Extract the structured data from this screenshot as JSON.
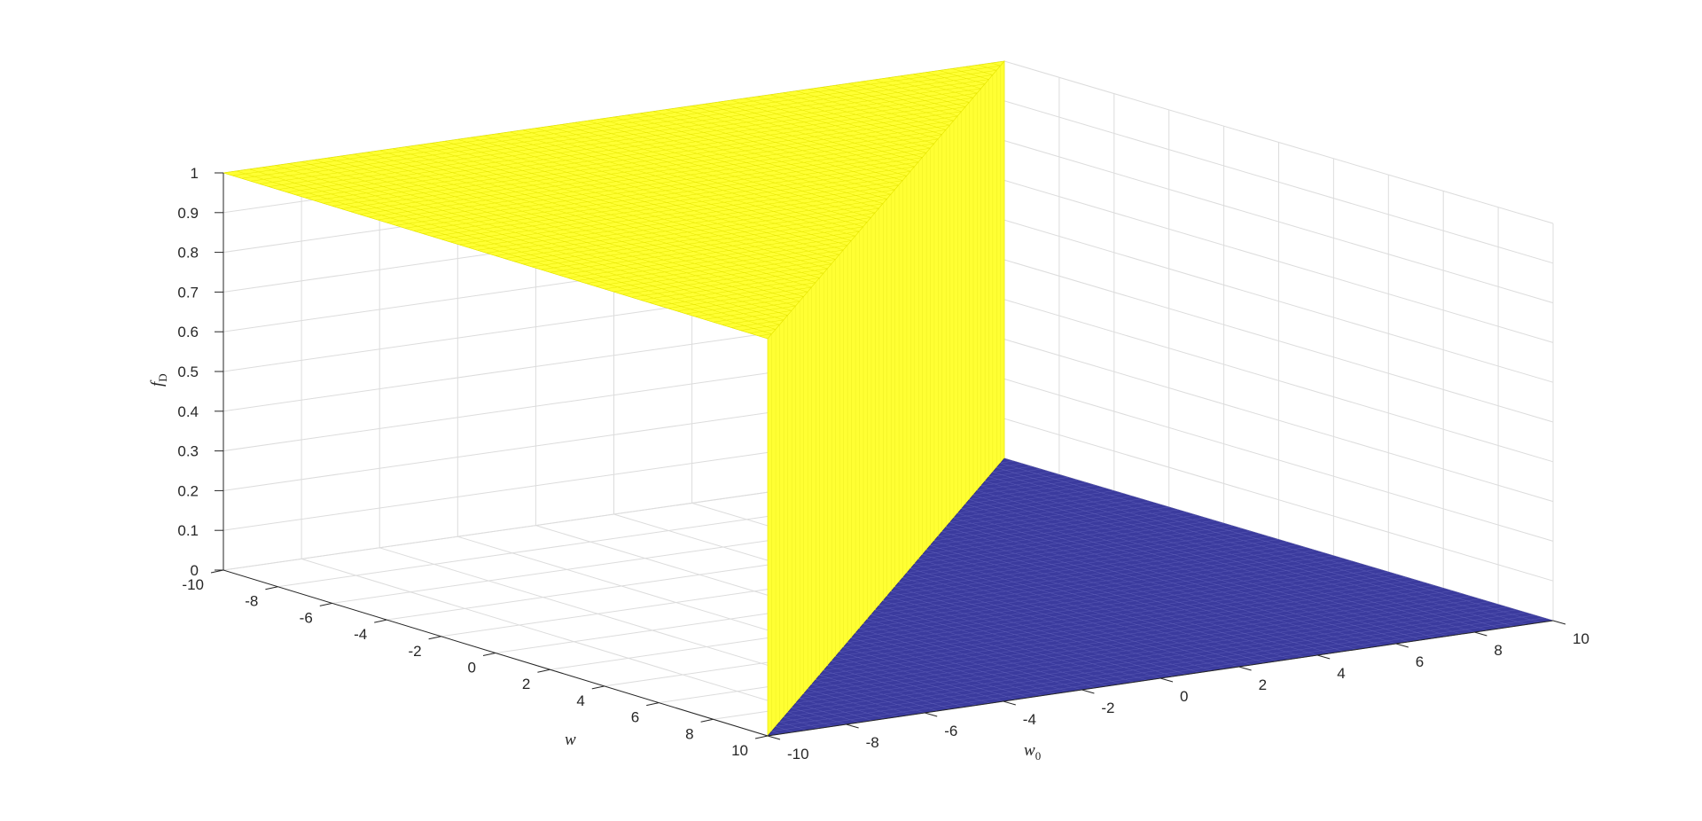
{
  "chart_data": {
    "type": "surface",
    "z_function": "step",
    "description_of_values": "f_D = 1 where w0 + w < 0 region shown high, else 0",
    "xlabel": "w",
    "ylabel_base": "w",
    "ylabel_sub": "0",
    "zlabel_base": "f",
    "zlabel_sub": "D",
    "xlim": [
      -10,
      10
    ],
    "ylim": [
      -10,
      10
    ],
    "zlim": [
      0,
      1
    ],
    "x_ticks": [
      "-10",
      "-8",
      "-6",
      "-4",
      "-2",
      "0",
      "2",
      "4",
      "6",
      "8",
      "10"
    ],
    "y_ticks": [
      "-10",
      "-8",
      "-6",
      "-4",
      "-2",
      "0",
      "2",
      "4",
      "6",
      "8",
      "10"
    ],
    "z_ticks": [
      "0",
      "0.1",
      "0.2",
      "0.3",
      "0.4",
      "0.5",
      "0.6",
      "0.7",
      "0.8",
      "0.9",
      "1"
    ],
    "grid": true,
    "colors": {
      "high": "#ffff33",
      "low": "#3b3b9e",
      "grid": "#dcdcdc",
      "axis": "#262626"
    }
  }
}
